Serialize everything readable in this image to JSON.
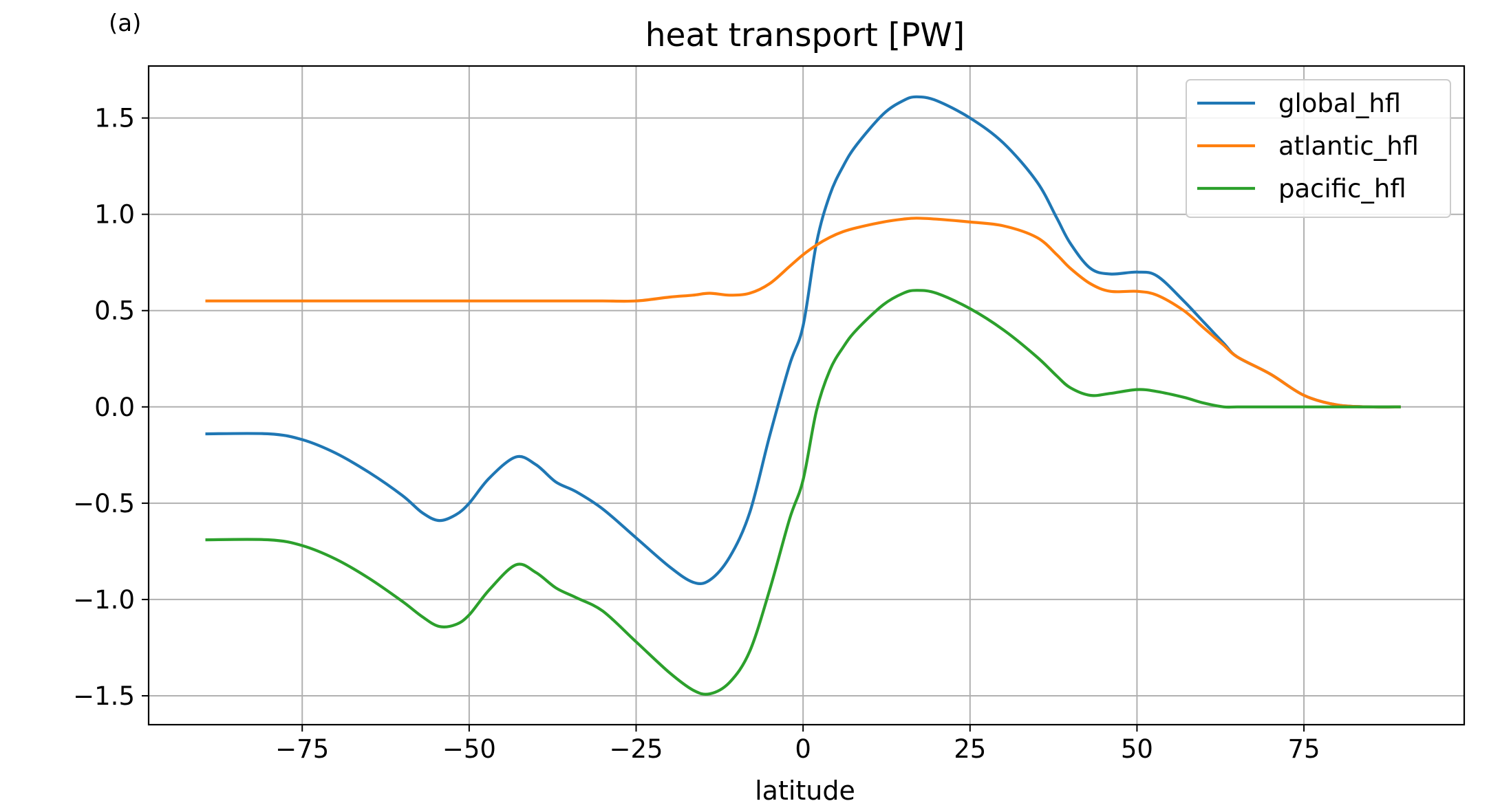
{
  "panel_label": "(a)",
  "chart_data": {
    "type": "line",
    "title": "heat transport [PW]",
    "xlabel": "latitude",
    "ylabel": "",
    "xlim": [
      -98,
      99
    ],
    "ylim": [
      -1.65,
      1.77
    ],
    "xticks": [
      -75,
      -50,
      -25,
      0,
      25,
      50,
      75
    ],
    "xtick_labels": [
      "−75",
      "−50",
      "−25",
      "0",
      "25",
      "50",
      "75"
    ],
    "yticks": [
      -1.5,
      -1.0,
      -0.5,
      0.0,
      0.5,
      1.0,
      1.5
    ],
    "ytick_labels": [
      "−1.5",
      "−1.0",
      "−0.5",
      "0.0",
      "0.5",
      "1.0",
      "1.5"
    ],
    "grid": true,
    "legend_position": "top-right",
    "x": [
      -89.5,
      -80,
      -75,
      -70,
      -65,
      -60,
      -57,
      -54.5,
      -52,
      -50,
      -47,
      -43,
      -40,
      -37,
      -34,
      -30,
      -25,
      -20,
      -16.5,
      -14,
      -11,
      -8,
      -5,
      -2,
      0,
      2,
      4,
      6,
      8,
      12,
      15,
      17,
      20,
      25,
      30,
      35,
      38,
      40,
      43,
      46,
      50,
      53,
      57,
      60,
      63,
      65,
      70,
      75,
      80,
      85,
      89.5
    ],
    "series": [
      {
        "name": "global_hfl",
        "color": "#1f77b4",
        "values": [
          -0.14,
          -0.14,
          -0.17,
          -0.24,
          -0.34,
          -0.46,
          -0.55,
          -0.59,
          -0.56,
          -0.5,
          -0.37,
          -0.26,
          -0.3,
          -0.39,
          -0.44,
          -0.53,
          -0.68,
          -0.83,
          -0.91,
          -0.9,
          -0.78,
          -0.55,
          -0.15,
          0.22,
          0.42,
          0.85,
          1.1,
          1.25,
          1.36,
          1.52,
          1.59,
          1.61,
          1.59,
          1.5,
          1.37,
          1.17,
          0.98,
          0.85,
          0.72,
          0.69,
          0.7,
          0.68,
          0.55,
          0.44,
          0.33,
          0.26,
          0.17,
          0.06,
          0.01,
          0.0,
          0.0
        ]
      },
      {
        "name": "atlantic_hfl",
        "color": "#ff7f0e",
        "values": [
          0.55,
          0.55,
          0.55,
          0.55,
          0.55,
          0.55,
          0.55,
          0.55,
          0.55,
          0.55,
          0.55,
          0.55,
          0.55,
          0.55,
          0.55,
          0.55,
          0.55,
          0.57,
          0.58,
          0.59,
          0.58,
          0.59,
          0.64,
          0.73,
          0.79,
          0.84,
          0.88,
          0.91,
          0.93,
          0.96,
          0.975,
          0.98,
          0.975,
          0.96,
          0.94,
          0.88,
          0.79,
          0.72,
          0.64,
          0.6,
          0.6,
          0.58,
          0.5,
          0.41,
          0.32,
          0.26,
          0.17,
          0.06,
          0.01,
          0.0,
          0.0
        ]
      },
      {
        "name": "pacific_hfl",
        "color": "#2ca02c",
        "values": [
          -0.69,
          -0.69,
          -0.72,
          -0.79,
          -0.89,
          -1.01,
          -1.09,
          -1.14,
          -1.13,
          -1.08,
          -0.95,
          -0.82,
          -0.86,
          -0.94,
          -0.99,
          -1.06,
          -1.22,
          -1.38,
          -1.47,
          -1.49,
          -1.43,
          -1.27,
          -0.95,
          -0.58,
          -0.38,
          -0.02,
          0.19,
          0.31,
          0.4,
          0.53,
          0.59,
          0.605,
          0.59,
          0.51,
          0.4,
          0.26,
          0.16,
          0.1,
          0.06,
          0.07,
          0.09,
          0.08,
          0.05,
          0.02,
          0.0,
          0.0,
          0.0,
          0.0,
          0.0,
          0.0,
          0.0
        ]
      }
    ]
  }
}
